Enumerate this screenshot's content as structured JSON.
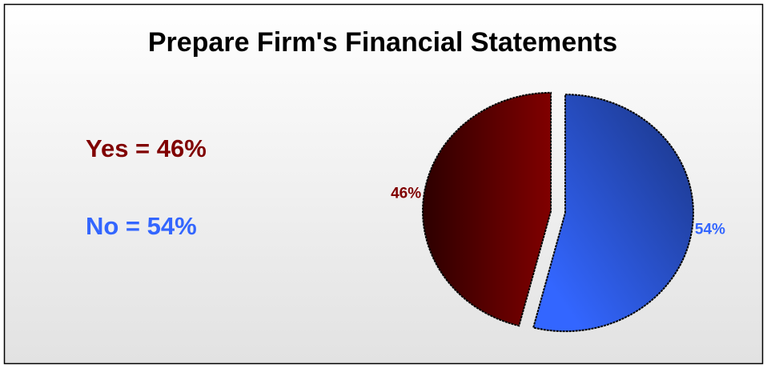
{
  "chart_data": {
    "type": "pie",
    "title": "Prepare Firm's Financial Statements",
    "categories": [
      "Yes",
      "No"
    ],
    "values": [
      46,
      54
    ],
    "value_labels": [
      "46%",
      "54%"
    ],
    "colors": [
      "#800000",
      "#3366ff"
    ],
    "annotations": [
      "Yes = 46%",
      "No = 54%"
    ]
  }
}
